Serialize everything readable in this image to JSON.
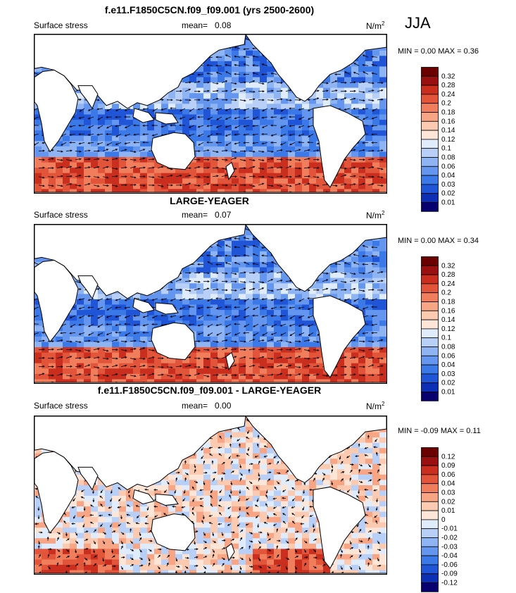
{
  "season": "JJA",
  "colorbar_colors": [
    "#08006e",
    "#0c2fb5",
    "#1f55d6",
    "#3b78e8",
    "#6496ef",
    "#8fb4f4",
    "#b8cff8",
    "#e0ecfb",
    "#fde6d8",
    "#fbcab0",
    "#f7a585",
    "#f07e5d",
    "#e2553a",
    "#c92e1f",
    "#9a1010",
    "#6b0000"
  ],
  "panels": [
    {
      "title": "f.e11.F1850C5CN.f09_f09.001 (yrs 2500-2600)",
      "left_label": "Surface stress",
      "mean_label": "mean=",
      "mean_value": "0.08",
      "units": "N/m",
      "units_sup": "2",
      "min_label": "MIN =",
      "min_value": "0.00",
      "max_label": "MAX =",
      "max_value": "0.36",
      "colorbar_labels": [
        "0.32",
        "0.28",
        "0.24",
        "0.2",
        "0.18",
        "0.16",
        "0.14",
        "0.12",
        "0.1",
        "0.08",
        "0.06",
        "0.04",
        "0.03",
        "0.02",
        "0.01"
      ],
      "field_style": "magnitude"
    },
    {
      "title": "LARGE-YEAGER",
      "left_label": "Surface stress",
      "mean_label": "mean=",
      "mean_value": "0.07",
      "units": "N/m",
      "units_sup": "2",
      "min_label": "MIN =",
      "min_value": "0.00",
      "max_label": "MAX =",
      "max_value": "0.34",
      "colorbar_labels": [
        "0.32",
        "0.28",
        "0.24",
        "0.2",
        "0.18",
        "0.16",
        "0.14",
        "0.12",
        "0.1",
        "0.08",
        "0.06",
        "0.04",
        "0.03",
        "0.02",
        "0.01"
      ],
      "field_style": "magnitude"
    },
    {
      "title": "f.e11.F1850C5CN.f09_f09.001 - LARGE-YEAGER",
      "left_label": "Surface stress",
      "mean_label": "mean=",
      "mean_value": "0.00",
      "units": "N/m",
      "units_sup": "2",
      "min_label": "MIN =",
      "min_value": "-0.09",
      "max_label": "MAX =",
      "max_value": "0.11",
      "colorbar_labels": [
        "0.12",
        "0.09",
        "0.06",
        "0.04",
        "0.03",
        "0.02",
        "0.01",
        "0",
        "-0.01",
        "-0.02",
        "-0.03",
        "-0.04",
        "-0.06",
        "-0.09",
        "-0.12"
      ],
      "field_style": "difference"
    }
  ]
}
